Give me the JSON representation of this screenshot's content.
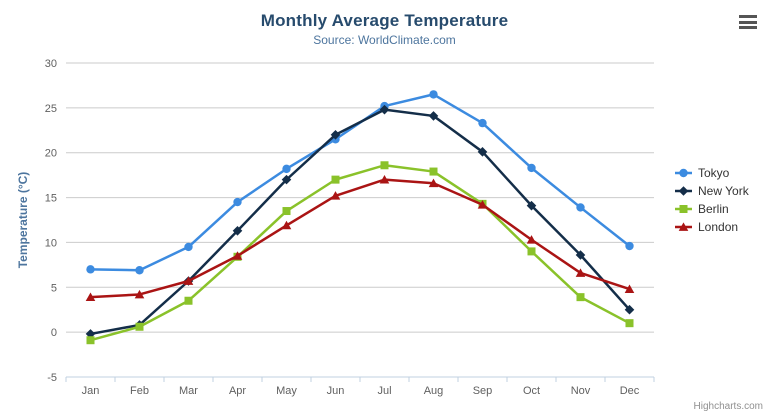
{
  "header": {
    "title": "Monthly Average Temperature",
    "subtitle": "Source: WorldClimate.com",
    "menu_icon": "hamburger-icon"
  },
  "chart_data": {
    "type": "line",
    "title": "Monthly Average Temperature",
    "subtitle": "Source: WorldClimate.com",
    "xlabel": "",
    "ylabel": "Temperature (°C)",
    "ylim": [
      -5,
      30
    ],
    "yticks": [
      30,
      25,
      20,
      15,
      10,
      5,
      0,
      -5
    ],
    "grid": true,
    "legend_position": "right",
    "categories": [
      "Jan",
      "Feb",
      "Mar",
      "Apr",
      "May",
      "Jun",
      "Jul",
      "Aug",
      "Sep",
      "Oct",
      "Nov",
      "Dec"
    ],
    "series": [
      {
        "name": "Tokyo",
        "color": "#3c8be0",
        "marker": "circle",
        "values": [
          7.0,
          6.9,
          9.5,
          14.5,
          18.2,
          21.5,
          25.2,
          26.5,
          23.3,
          18.3,
          13.9,
          9.6
        ]
      },
      {
        "name": "New York",
        "color": "#142e49",
        "marker": "diamond",
        "values": [
          -0.2,
          0.8,
          5.7,
          11.3,
          17.0,
          22.0,
          24.8,
          24.1,
          20.1,
          14.1,
          8.6,
          2.5
        ]
      },
      {
        "name": "Berlin",
        "color": "#8ac22a",
        "marker": "square",
        "values": [
          -0.9,
          0.6,
          3.5,
          8.4,
          13.5,
          17.0,
          18.6,
          17.9,
          14.3,
          9.0,
          3.9,
          1.0
        ]
      },
      {
        "name": "London",
        "color": "#aa1414",
        "marker": "triangle",
        "values": [
          3.9,
          4.2,
          5.7,
          8.5,
          11.9,
          15.2,
          17.0,
          16.6,
          14.2,
          10.3,
          6.6,
          4.8
        ]
      }
    ],
    "colors": {
      "title": "#274b6d",
      "subtitle": "#4d759e",
      "axis_label": "#606060",
      "gridline": "#cbcbcb",
      "axis_line": "#c0d0e0",
      "legend_text": "#333333"
    }
  },
  "credit": {
    "label": "Highcharts.com"
  }
}
